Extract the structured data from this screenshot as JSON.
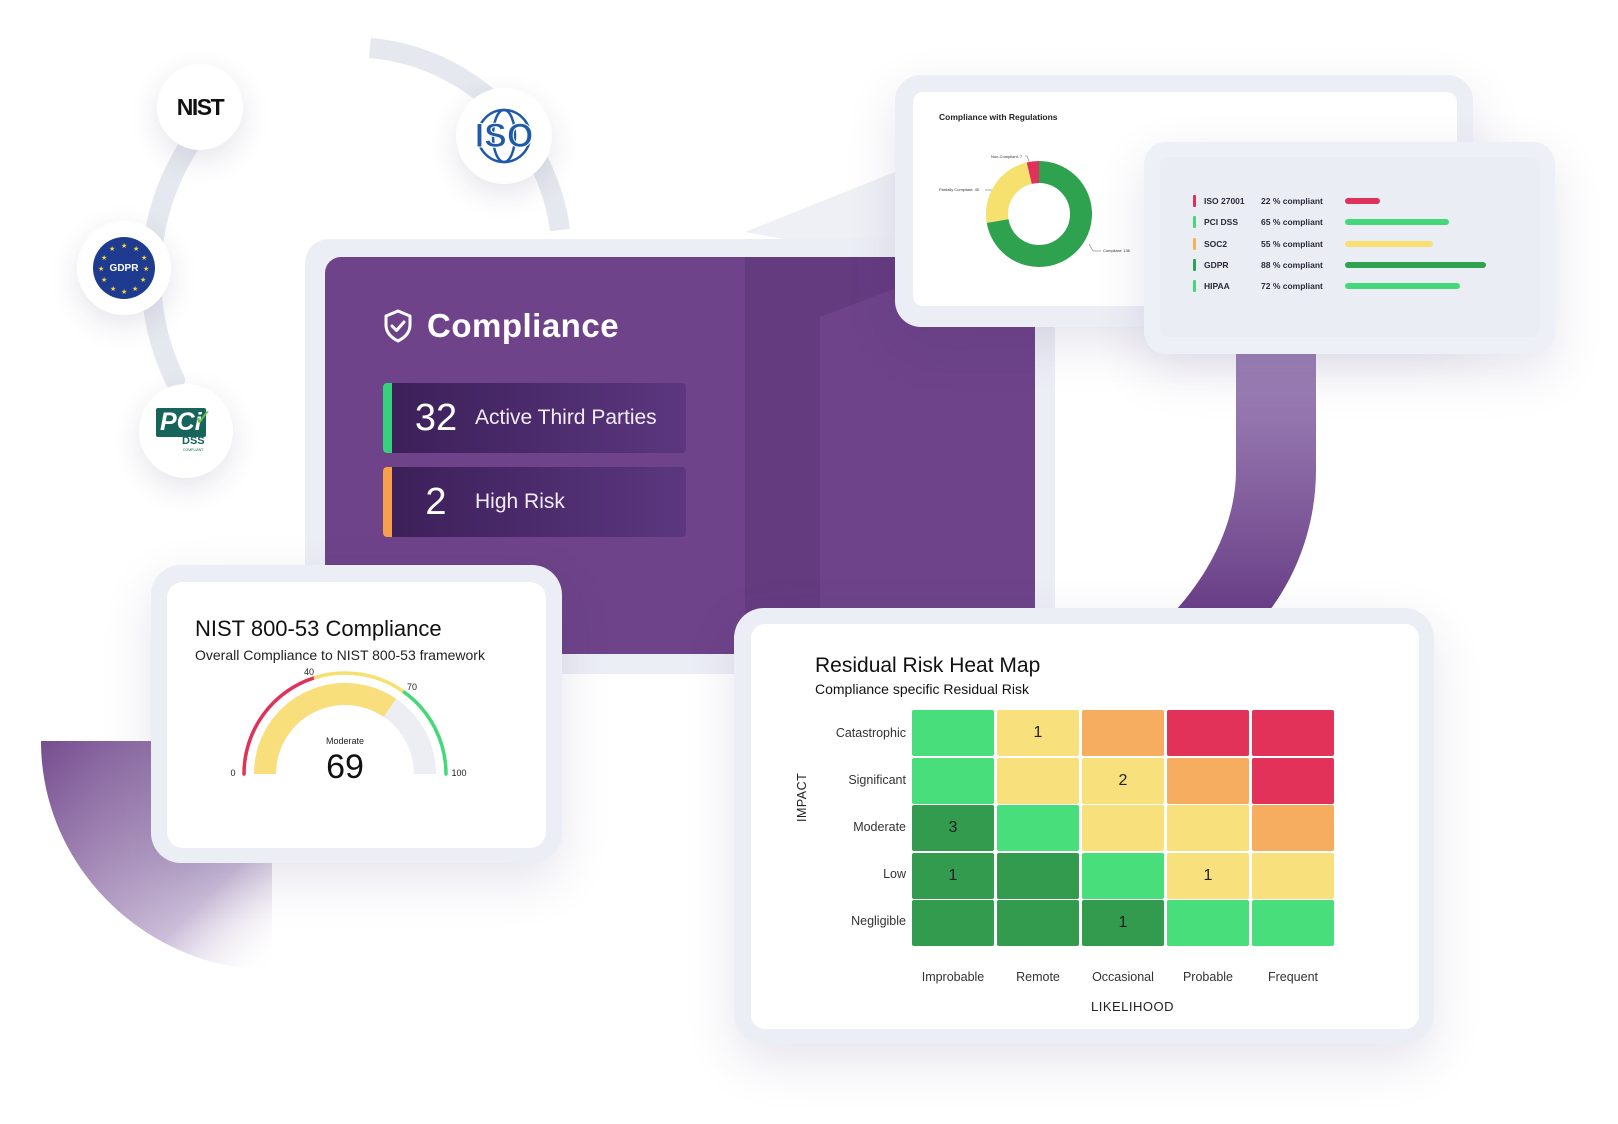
{
  "logos": {
    "nist": "NIST",
    "iso": "ISO",
    "gdpr": "GDPR",
    "pci": "PCi",
    "pci_sub": "DSS",
    "pci_small": "COMPLIANT"
  },
  "compliance": {
    "title": "Compliance",
    "stats": [
      {
        "value": "32",
        "label": "Active Third Parties",
        "color": "#36d17a"
      },
      {
        "value": "2",
        "label": "High Risk",
        "color": "#f6a04d"
      }
    ]
  },
  "nist_card": {
    "title": "NIST 800-53 Compliance",
    "subtitle": "Overall Compliance to NIST 800-53 framework",
    "gauge": {
      "value": 69,
      "value_text": "69",
      "status": "Moderate",
      "min": "0",
      "max": "100",
      "t1": "40",
      "t2": "70"
    }
  },
  "regulations_card": {
    "title": "Compliance with Regulations",
    "donut_labels": {
      "non": "Non-Compliant: 7",
      "partial": "Partially Compliant: 45",
      "compliant": "Compliant: 136"
    }
  },
  "regulation_bars": [
    {
      "name": "ISO 27001",
      "pct_text": "22 % compliant",
      "pct": 22,
      "color": "#e0315a"
    },
    {
      "name": "PCI DSS",
      "pct_text": "65 % compliant",
      "pct": 65,
      "color": "#44d878"
    },
    {
      "name": "SOC2",
      "pct_text": "55 % compliant",
      "pct": 55,
      "color": "#f7df74"
    },
    {
      "name": "GDPR",
      "pct_text": "88 % compliant",
      "pct": 88,
      "color": "#2fa24f"
    },
    {
      "name": "HIPAA",
      "pct_text": "72 % compliant",
      "pct": 72,
      "color": "#44d878"
    }
  ],
  "heatmap": {
    "title": "Residual Risk Heat Map",
    "subtitle": "Compliance specific Residual Risk",
    "y_title": "IMPACT",
    "x_title": "LIKELIHOOD",
    "rows": [
      "Catastrophic",
      "Significant",
      "Moderate",
      "Low",
      "Negligible"
    ],
    "cols": [
      "Improbable",
      "Remote",
      "Occasional",
      "Probable",
      "Frequent"
    ]
  },
  "chart_data": [
    {
      "type": "pie",
      "title": "Compliance with Regulations",
      "categories": [
        "Non-Compliant",
        "Partially Compliant",
        "Compliant"
      ],
      "values": [
        7,
        45,
        136
      ],
      "colors": [
        "#e0315a",
        "#f6e06e",
        "#2fa24f"
      ]
    },
    {
      "type": "bar",
      "categories": [
        "ISO 27001",
        "PCI DSS",
        "SOC2",
        "GDPR",
        "HIPAA"
      ],
      "values": [
        22,
        65,
        55,
        88,
        72
      ],
      "xlim": [
        0,
        100
      ]
    },
    {
      "type": "heatmap",
      "title": "Residual Risk Heat Map",
      "subtitle": "Compliance specific Residual Risk",
      "xlabel": "LIKELIHOOD",
      "ylabel": "IMPACT",
      "x": [
        "Improbable",
        "Remote",
        "Occasional",
        "Probable",
        "Frequent"
      ],
      "y": [
        "Catastrophic",
        "Significant",
        "Moderate",
        "Low",
        "Negligible"
      ],
      "colors": [
        [
          "#48de7c",
          "#f8e17c",
          "#f7ad5f",
          "#e3325a",
          "#e3325a"
        ],
        [
          "#48de7c",
          "#f8e17c",
          "#f8e17c",
          "#f7ad5f",
          "#e3325a"
        ],
        [
          "#329b4e",
          "#48de7c",
          "#f8e17c",
          "#f8e17c",
          "#f7ad5f"
        ],
        [
          "#329b4e",
          "#329b4e",
          "#48de7c",
          "#f8e17c",
          "#f8e17c"
        ],
        [
          "#329b4e",
          "#329b4e",
          "#329b4e",
          "#48de7c",
          "#48de7c"
        ]
      ],
      "values": [
        [
          "",
          "1",
          "",
          "",
          ""
        ],
        [
          "",
          "",
          "2",
          "",
          ""
        ],
        [
          "3",
          "",
          "",
          "",
          ""
        ],
        [
          "1",
          "",
          "",
          "1",
          ""
        ],
        [
          "",
          "",
          "1",
          "",
          ""
        ]
      ]
    }
  ]
}
